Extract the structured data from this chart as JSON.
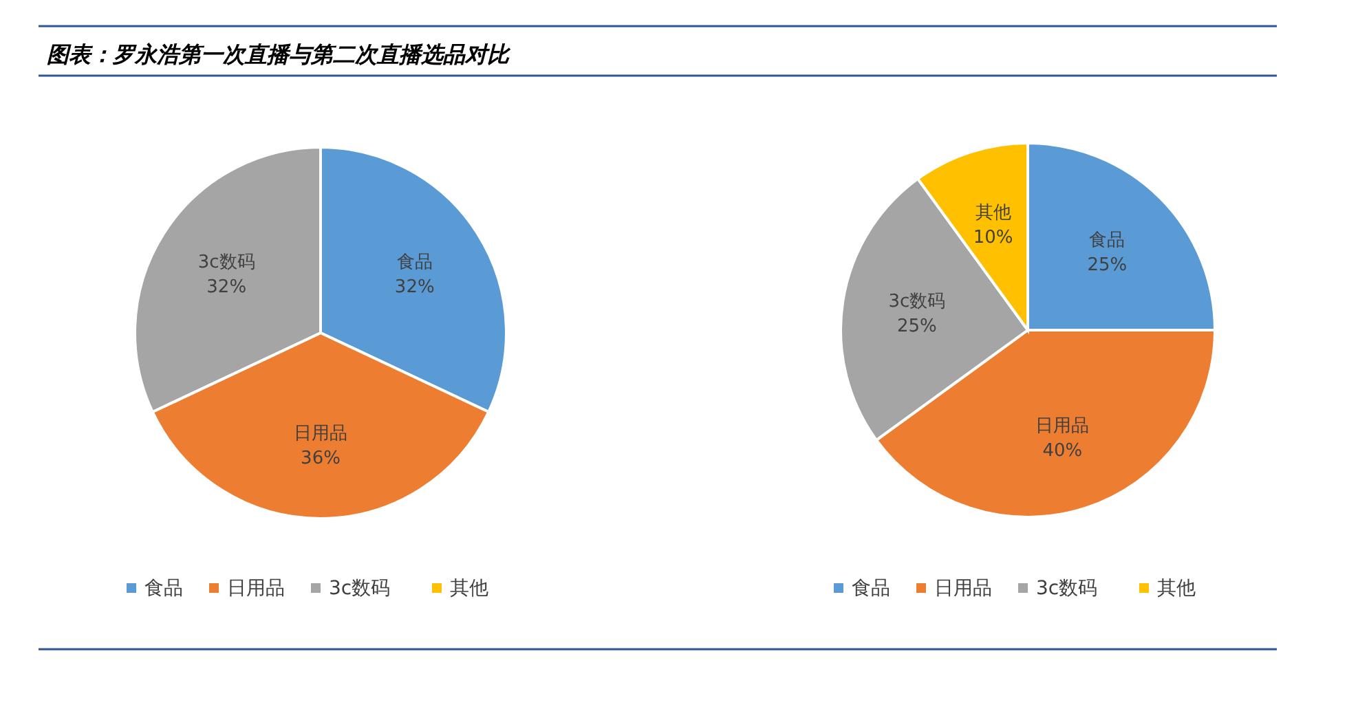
{
  "chart_data": [
    {
      "type": "pie",
      "title": "图表：罗永浩第一次直播与第二次直播选品对比",
      "categories": [
        "食品",
        "日用品",
        "3c数码",
        "其他"
      ],
      "values": [
        32,
        36,
        32,
        0
      ],
      "value_labels": [
        "32%",
        "36%",
        "32%",
        null
      ],
      "colors": [
        "#5b9bd5",
        "#ed7d31",
        "#a5a5a5",
        "#ffc000"
      ],
      "legend": "bottom"
    },
    {
      "type": "pie",
      "categories": [
        "食品",
        "日用品",
        "3c数码",
        "其他"
      ],
      "values": [
        25,
        40,
        25,
        10
      ],
      "value_labels": [
        "25%",
        "40%",
        "25%",
        "10%"
      ],
      "colors": [
        "#5b9bd5",
        "#ed7d31",
        "#a5a5a5",
        "#ffc000"
      ],
      "legend": "bottom"
    }
  ]
}
